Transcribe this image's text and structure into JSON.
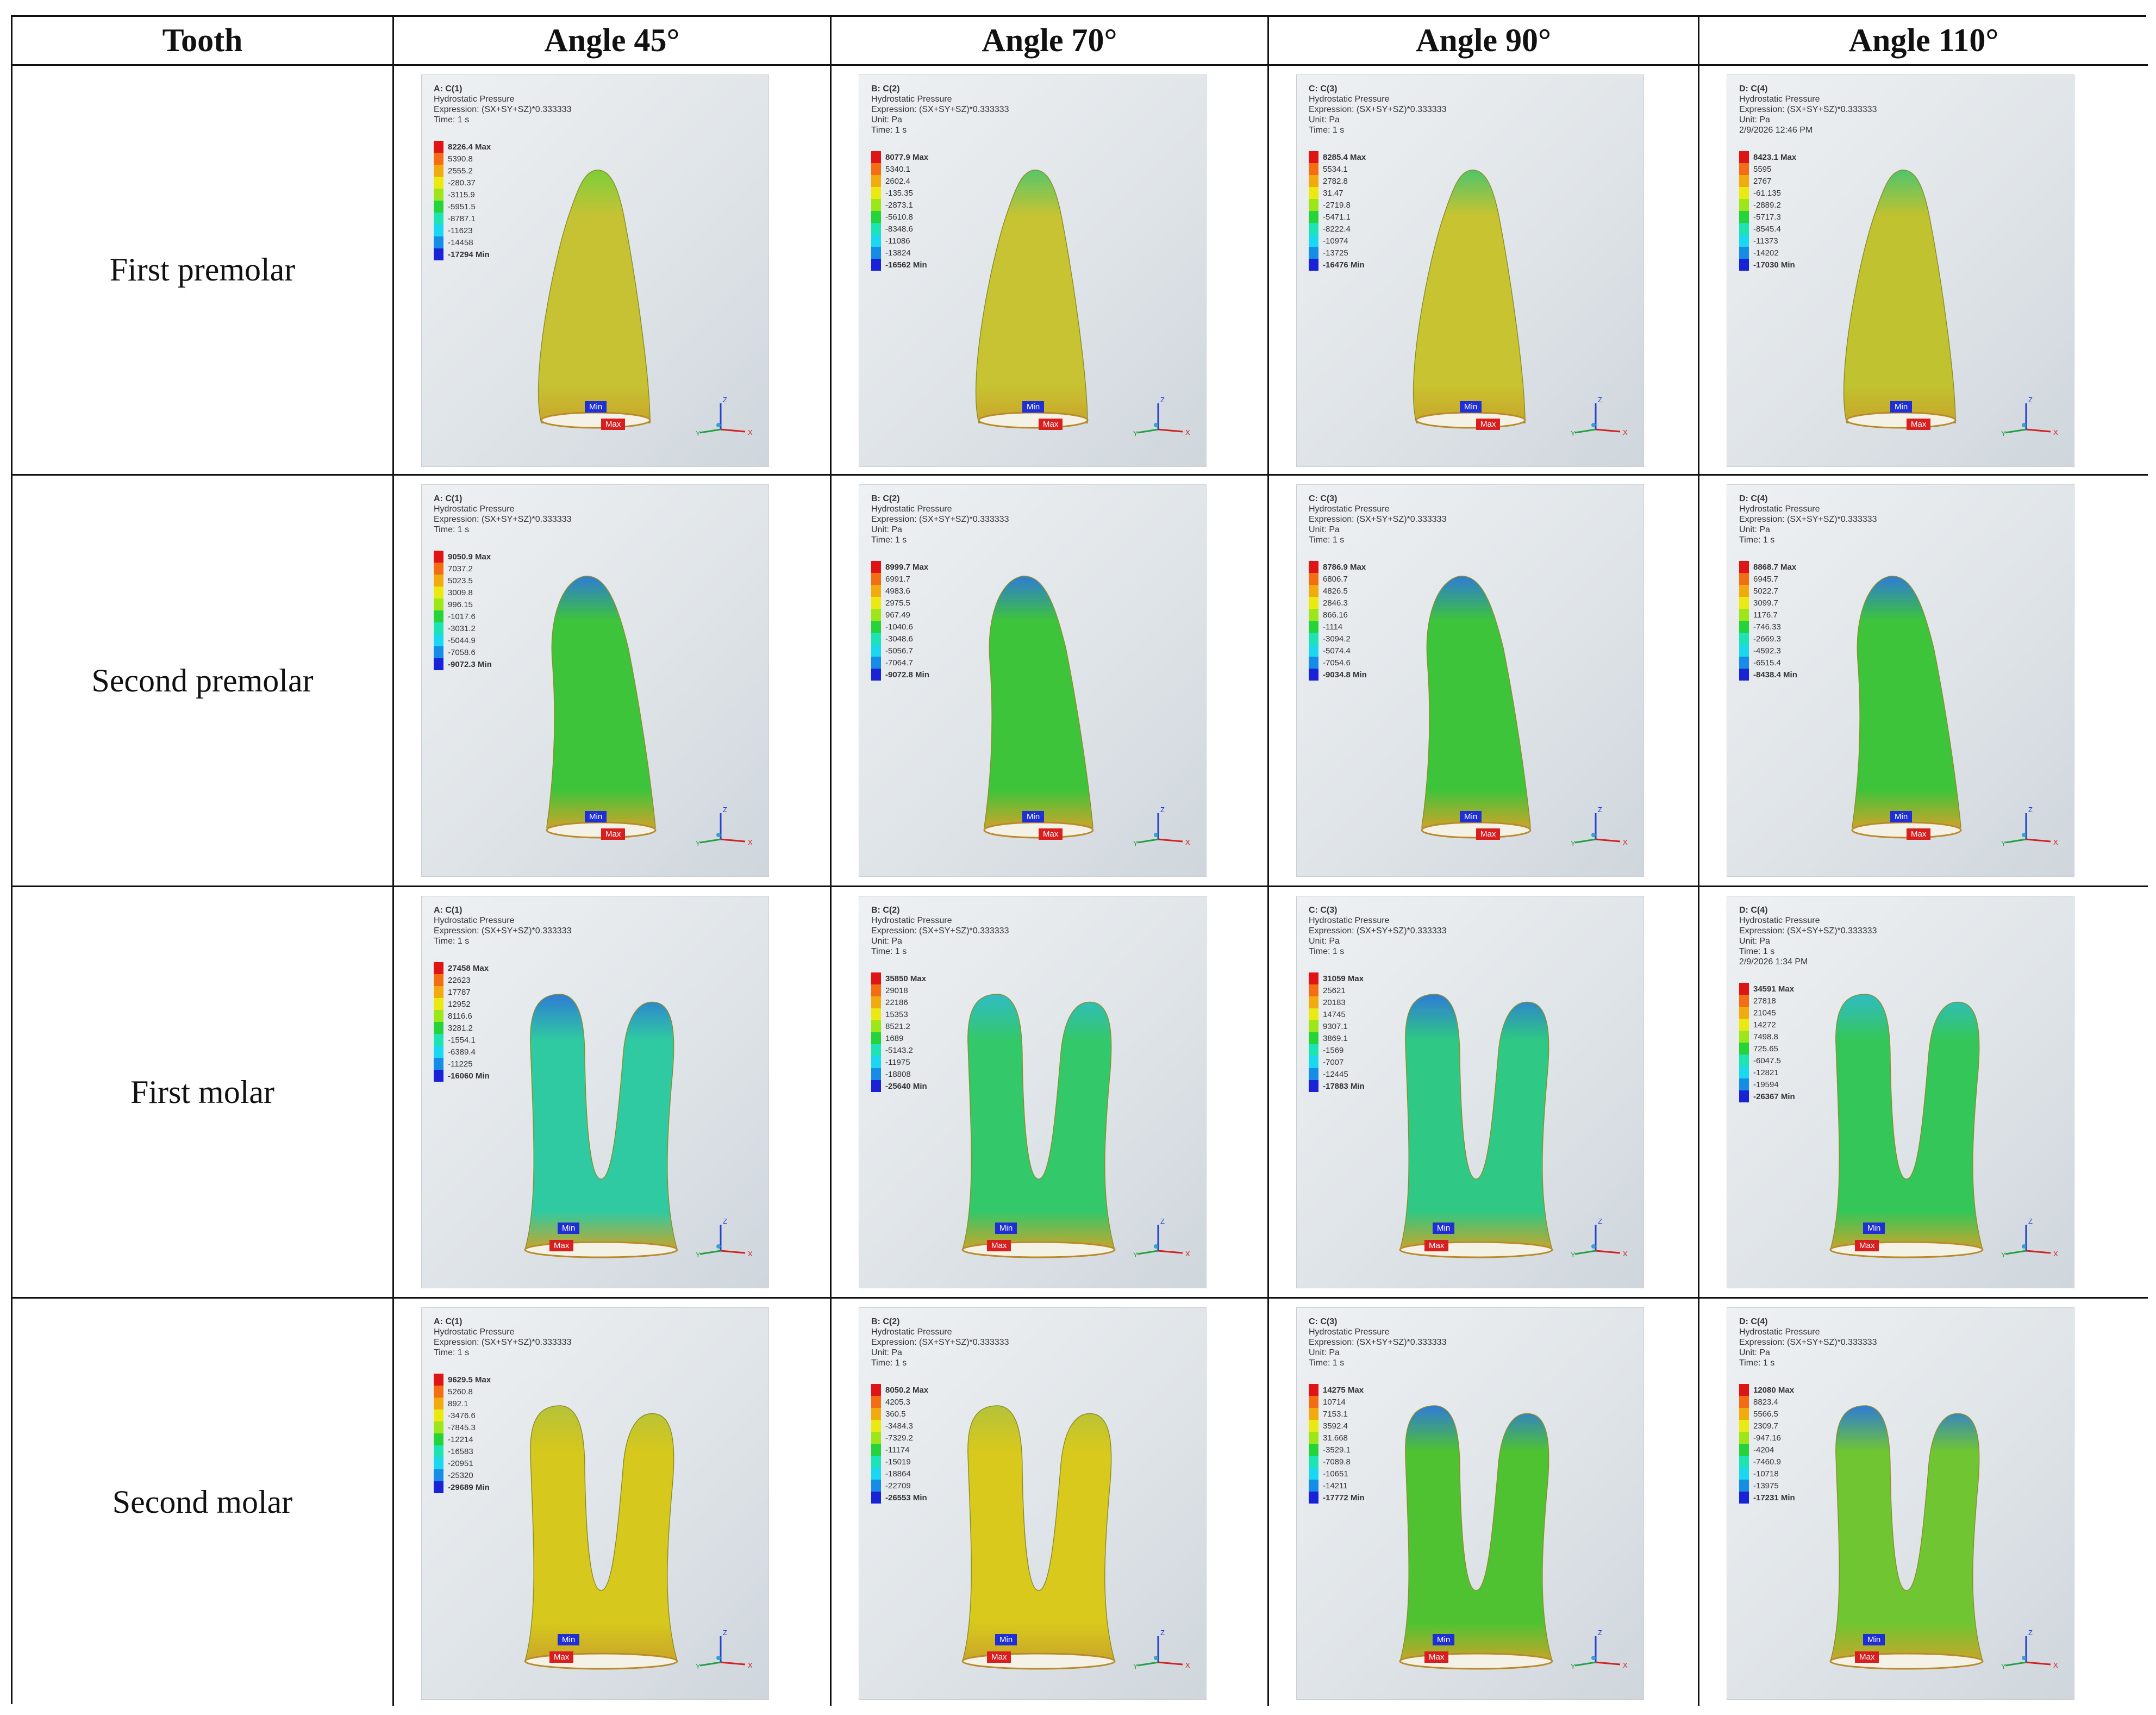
{
  "headers": [
    "Tooth",
    "Angle 45°",
    "Angle 70°",
    "Angle 90°",
    "Angle 110°"
  ],
  "legend_colors": [
    "#e01414",
    "#f36d12",
    "#f2ab0f",
    "#eaea12",
    "#9ce61a",
    "#25d43a",
    "#1ee3b5",
    "#1ad8f0",
    "#158de6",
    "#1a22d8"
  ],
  "rows": [
    {
      "label": "First premolar",
      "shape": "single",
      "cells": [
        {
          "title": "A: C(1)",
          "lines": [
            "Hydrostatic Pressure",
            "Expression: (SX+SY+SZ)*0.333333",
            "Time: 1 s"
          ],
          "legend": [
            "8226.4 Max",
            "5390.8",
            "2555.2",
            "-280.37",
            "-3115.9",
            "-5951.5",
            "-8787.1",
            "-11623",
            "-14458",
            "-17294 Min"
          ],
          "fill": "#c6c234",
          "hi": "#7ccf3a"
        },
        {
          "title": "B: C(2)",
          "lines": [
            "Hydrostatic Pressure",
            "Expression: (SX+SY+SZ)*0.333333",
            "Unit: Pa",
            "Time: 1 s"
          ],
          "legend": [
            "8077.9 Max",
            "5340.1",
            "2602.4",
            "-135.35",
            "-2873.1",
            "-5610.8",
            "-8348.6",
            "-11086",
            "-13824",
            "-16562 Min"
          ],
          "fill": "#c7c332",
          "hi": "#56c66a"
        },
        {
          "title": "C: C(3)",
          "lines": [
            "Hydrostatic Pressure",
            "Expression: (SX+SY+SZ)*0.333333",
            "Unit: Pa",
            "Time: 1 s"
          ],
          "legend": [
            "8285.4 Max",
            "5534.1",
            "2782.8",
            "31.47",
            "-2719.8",
            "-5471.1",
            "-8222.4",
            "-10974",
            "-13725",
            "-16476 Min"
          ],
          "fill": "#c8c330",
          "hi": "#4fc56c"
        },
        {
          "title": "D: C(4)",
          "lines": [
            "Hydrostatic Pressure",
            "Expression: (SX+SY+SZ)*0.333333",
            "Unit: Pa",
            "2/9/2026 12:46 PM"
          ],
          "legend": [
            "8423.1 Max",
            "5595",
            "2767",
            "-61.135",
            "-2889.2",
            "-5717.3",
            "-8545.4",
            "-11373",
            "-14202",
            "-17030 Min"
          ],
          "fill": "#c0c230",
          "hi": "#4fc56c"
        }
      ]
    },
    {
      "label": "Second premolar",
      "shape": "curved",
      "cells": [
        {
          "title": "A: C(1)",
          "lines": [
            "Hydrostatic Pressure",
            "Expression: (SX+SY+SZ)*0.333333",
            "Time: 1 s"
          ],
          "legend": [
            "9050.9 Max",
            "7037.2",
            "5023.5",
            "3009.8",
            "996.15",
            "-1017.6",
            "-3031.2",
            "-5044.9",
            "-7058.6",
            "-9072.3 Min"
          ],
          "fill": "#3ec43a",
          "hi": "#2f7bd6"
        },
        {
          "title": "B: C(2)",
          "lines": [
            "Hydrostatic Pressure",
            "Expression: (SX+SY+SZ)*0.333333",
            "Unit: Pa",
            "Time: 1 s"
          ],
          "legend": [
            "8999.7 Max",
            "6991.7",
            "4983.6",
            "2975.5",
            "967.49",
            "-1040.6",
            "-3048.6",
            "-5056.7",
            "-7064.7",
            "-9072.8 Min"
          ],
          "fill": "#3ec43a",
          "hi": "#2f7bd6"
        },
        {
          "title": "C: C(3)",
          "lines": [
            "Hydrostatic Pressure",
            "Expression: (SX+SY+SZ)*0.333333",
            "Unit: Pa",
            "Time: 1 s"
          ],
          "legend": [
            "8786.9 Max",
            "6806.7",
            "4826.5",
            "2846.3",
            "866.16",
            "-1114",
            "-3094.2",
            "-5074.4",
            "-7054.6",
            "-9034.8 Min"
          ],
          "fill": "#3ec43a",
          "hi": "#2f7bd6"
        },
        {
          "title": "D: C(4)",
          "lines": [
            "Hydrostatic Pressure",
            "Expression: (SX+SY+SZ)*0.333333",
            "Unit: Pa",
            "Time: 1 s"
          ],
          "legend": [
            "8868.7 Max",
            "6945.7",
            "5022.7",
            "3099.7",
            "1176.7",
            "-746.33",
            "-2669.3",
            "-4592.3",
            "-6515.4",
            "-8438.4 Min"
          ],
          "fill": "#3ec43a",
          "hi": "#2f7bd6"
        }
      ]
    },
    {
      "label": "First molar",
      "shape": "molar",
      "cells": [
        {
          "title": "A: C(1)",
          "lines": [
            "Hydrostatic Pressure",
            "Expression: (SX+SY+SZ)*0.333333",
            "Time: 1 s"
          ],
          "legend": [
            "27458 Max",
            "22623",
            "17787",
            "12952",
            "8116.6",
            "3281.2",
            "-1554.1",
            "-6389.4",
            "-11225",
            "-16060 Min"
          ],
          "fill": "#2fcaa2",
          "hi": "#2f7bd6"
        },
        {
          "title": "B: C(2)",
          "lines": [
            "Hydrostatic Pressure",
            "Expression: (SX+SY+SZ)*0.333333",
            "Unit: Pa",
            "Time: 1 s"
          ],
          "legend": [
            "35850 Max",
            "29018",
            "22186",
            "15353",
            "8521.2",
            "1689",
            "-5143.2",
            "-11975",
            "-18808",
            "-25640 Min"
          ],
          "fill": "#33c86a",
          "hi": "#2fbcc6"
        },
        {
          "title": "C: C(3)",
          "lines": [
            "Hydrostatic Pressure",
            "Expression: (SX+SY+SZ)*0.333333",
            "Unit: Pa",
            "Time: 1 s"
          ],
          "legend": [
            "31059 Max",
            "25621",
            "20183",
            "14745",
            "9307.1",
            "3869.1",
            "-1569",
            "-7007",
            "-12445",
            "-17883 Min"
          ],
          "fill": "#2fc884",
          "hi": "#2f7bd6"
        },
        {
          "title": "D: C(4)",
          "lines": [
            "Hydrostatic Pressure",
            "Expression: (SX+SY+SZ)*0.333333",
            "Unit: Pa",
            "Time: 1 s",
            "2/9/2026 1:34 PM"
          ],
          "legend": [
            "34591 Max",
            "27818",
            "21045",
            "14272",
            "7498.8",
            "725.65",
            "-6047.5",
            "-12821",
            "-19594",
            "-26367 Min"
          ],
          "fill": "#35c659",
          "hi": "#2fbcc6"
        }
      ]
    },
    {
      "label": "Second molar",
      "shape": "molar",
      "cells": [
        {
          "title": "A: C(1)",
          "lines": [
            "Hydrostatic Pressure",
            "Expression: (SX+SY+SZ)*0.333333",
            "Time: 1 s"
          ],
          "legend": [
            "9629.5 Max",
            "5260.8",
            "892.1",
            "-3476.6",
            "-7845.3",
            "-12214",
            "-16583",
            "-20951",
            "-25320",
            "-29689 Min"
          ],
          "fill": "#d6c81c",
          "hi": "#b5c23a"
        },
        {
          "title": "B: C(2)",
          "lines": [
            "Hydrostatic Pressure",
            "Expression: (SX+SY+SZ)*0.333333",
            "Unit: Pa",
            "Time: 1 s"
          ],
          "legend": [
            "8050.2 Max",
            "4205.3",
            "360.5",
            "-3484.3",
            "-7329.2",
            "-11174",
            "-15019",
            "-18864",
            "-22709",
            "-26553 Min"
          ],
          "fill": "#d8c91c",
          "hi": "#b5c23a"
        },
        {
          "title": "C: C(3)",
          "lines": [
            "Hydrostatic Pressure",
            "Expression: (SX+SY+SZ)*0.333333",
            "Unit: Pa",
            "Time: 1 s"
          ],
          "legend": [
            "14275 Max",
            "10714",
            "7153.1",
            "3592.4",
            "31.668",
            "-3529.1",
            "-7089.8",
            "-10651",
            "-14211",
            "-17772 Min"
          ],
          "fill": "#4fc232",
          "hi": "#2f7bd6"
        },
        {
          "title": "D: C(4)",
          "lines": [
            "Hydrostatic Pressure",
            "Expression: (SX+SY+SZ)*0.333333",
            "Unit: Pa",
            "Time: 1 s"
          ],
          "legend": [
            "12080 Max",
            "8823.4",
            "5566.5",
            "2309.7",
            "-947.16",
            "-4204",
            "-7460.9",
            "-10718",
            "-13975",
            "-17231 Min"
          ],
          "fill": "#6fc632",
          "hi": "#2f7bd6"
        }
      ]
    }
  ],
  "marker_min": "Min",
  "marker_max": "Max",
  "axis_labels": {
    "x": "X",
    "y": "Y",
    "z": "Z"
  }
}
